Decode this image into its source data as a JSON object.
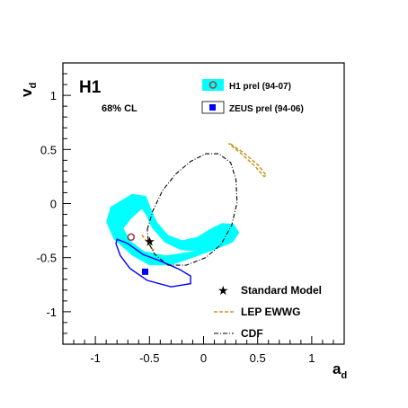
{
  "chart_data": {
    "type": "scatter",
    "experiment_label": "H1",
    "confidence_note": "68% CL",
    "xlabel": "a",
    "xlabel_sub": "d",
    "ylabel": "v",
    "ylabel_sub": "d",
    "xlim": [
      -1.3,
      1.3
    ],
    "ylim": [
      -1.3,
      1.3
    ],
    "x_ticks": [
      -1,
      -0.5,
      0,
      0.5,
      1
    ],
    "y_ticks": [
      -1,
      -0.5,
      0,
      0.5,
      1
    ],
    "x_tick_labels": [
      "-1",
      "-0.5",
      "0",
      "0.5",
      "1"
    ],
    "y_tick_labels": [
      "-1",
      "-0.5",
      "0",
      "0.5",
      "1"
    ],
    "colors": {
      "h1": "#00ffff",
      "zeus": "#0000ff",
      "lep": "#c8961e",
      "cdf": "#000000",
      "h1_point": "#a04040"
    },
    "legend": {
      "h1_label": "H1 prel (94-07)",
      "zeus_label": "ZEUS prel (94-06)",
      "sm_label": "Standard Model",
      "lep_label": "LEP EWWG",
      "cdf_label": "CDF"
    },
    "series": [
      {
        "name": "H1 prel (94-07)",
        "kind": "contour-band",
        "outer": [
          [
            -0.86,
            -0.03
          ],
          [
            -0.66,
            0.09
          ],
          [
            -0.53,
            0.07
          ],
          [
            -0.49,
            -0.04
          ],
          [
            -0.43,
            -0.17
          ],
          [
            -0.33,
            -0.29
          ],
          [
            -0.2,
            -0.34
          ],
          [
            -0.06,
            -0.31
          ],
          [
            0.07,
            -0.23
          ],
          [
            0.17,
            -0.18
          ],
          [
            0.28,
            -0.19
          ],
          [
            0.33,
            -0.27
          ],
          [
            0.27,
            -0.36
          ],
          [
            0.12,
            -0.42
          ],
          [
            -0.1,
            -0.5
          ],
          [
            -0.3,
            -0.57
          ],
          [
            -0.5,
            -0.57
          ],
          [
            -0.66,
            -0.48
          ],
          [
            -0.83,
            -0.33
          ],
          [
            -0.9,
            -0.17
          ]
        ],
        "inner": [
          [
            -0.67,
            -0.14
          ],
          [
            -0.57,
            -0.05
          ],
          [
            -0.53,
            -0.11
          ],
          [
            -0.48,
            -0.22
          ],
          [
            -0.36,
            -0.36
          ],
          [
            -0.21,
            -0.43
          ],
          [
            -0.08,
            -0.44
          ],
          [
            -0.35,
            -0.48
          ],
          [
            -0.55,
            -0.44
          ],
          [
            -0.67,
            -0.35
          ],
          [
            -0.74,
            -0.23
          ]
        ],
        "point": {
          "x": -0.67,
          "y": -0.31
        }
      },
      {
        "name": "ZEUS prel (94-06)",
        "kind": "contour",
        "outline": [
          [
            -0.8,
            -0.33
          ],
          [
            -0.7,
            -0.37
          ],
          [
            -0.56,
            -0.47
          ],
          [
            -0.4,
            -0.53
          ],
          [
            -0.22,
            -0.61
          ],
          [
            -0.12,
            -0.67
          ],
          [
            -0.12,
            -0.74
          ],
          [
            -0.3,
            -0.77
          ],
          [
            -0.52,
            -0.71
          ],
          [
            -0.68,
            -0.6
          ],
          [
            -0.77,
            -0.48
          ],
          [
            -0.81,
            -0.37
          ]
        ],
        "point": {
          "x": -0.54,
          "y": -0.63
        }
      },
      {
        "name": "Standard Model",
        "kind": "point",
        "point": {
          "x": -0.5,
          "y": -0.35
        }
      },
      {
        "name": "LEP EWWG",
        "kind": "contour",
        "outline": [
          [
            0.25,
            0.55
          ],
          [
            0.37,
            0.47
          ],
          [
            0.51,
            0.35
          ],
          [
            0.58,
            0.26
          ],
          [
            0.56,
            0.25
          ],
          [
            0.48,
            0.34
          ],
          [
            0.35,
            0.46
          ],
          [
            0.24,
            0.55
          ]
        ],
        "segment": [
          [
            -0.57,
            -0.29
          ],
          [
            -0.45,
            -0.45
          ]
        ]
      },
      {
        "name": "CDF",
        "kind": "contour",
        "outline": [
          [
            -0.52,
            -0.24
          ],
          [
            -0.47,
            -0.07
          ],
          [
            -0.38,
            0.12
          ],
          [
            -0.26,
            0.27
          ],
          [
            -0.12,
            0.39
          ],
          [
            0.02,
            0.46
          ],
          [
            0.14,
            0.46
          ],
          [
            0.25,
            0.38
          ],
          [
            0.3,
            0.22
          ],
          [
            0.31,
            0.01
          ],
          [
            0.26,
            -0.2
          ],
          [
            0.16,
            -0.38
          ],
          [
            0.02,
            -0.5
          ],
          [
            -0.16,
            -0.57
          ],
          [
            -0.33,
            -0.57
          ],
          [
            -0.45,
            -0.47
          ],
          [
            -0.51,
            -0.36
          ]
        ]
      }
    ]
  }
}
